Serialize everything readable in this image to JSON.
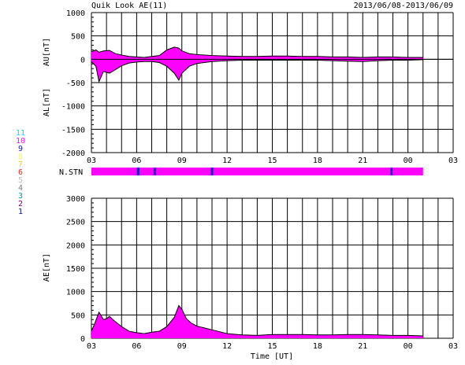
{
  "title": "Quik Look AE(11)",
  "date_range": "2013/06/08-2013/06/09",
  "time_label": "Time [UT]",
  "nstn_label": "N.STN",
  "colors": {
    "fill": "#ff00ff",
    "grid": "#000000",
    "stn_marker": "#1020c0"
  },
  "station_legend": [
    {
      "label": "11",
      "color": "#00e0e0"
    },
    {
      "label": "10",
      "color": "#ff00ff"
    },
    {
      "label": "9",
      "color": "#1020c0"
    },
    {
      "label": "8",
      "color": "#f0f080"
    },
    {
      "label": "7",
      "color": "#f0d020"
    },
    {
      "label": "6",
      "color": "#ff2020"
    },
    {
      "label": "5",
      "color": "#c0c0c0"
    },
    {
      "label": "4",
      "color": "#808080"
    },
    {
      "label": "3",
      "color": "#00a0a0"
    },
    {
      "label": "2",
      "color": "#800080"
    },
    {
      "label": "1",
      "color": "#1010a0"
    }
  ],
  "chart_data": [
    {
      "type": "area",
      "name": "AU/AL",
      "ylabel_top": "AU[nT]",
      "ylabel_bottom": "AL[nT]",
      "xlim": [
        3,
        27
      ],
      "ylim": [
        -2000,
        1000
      ],
      "yticks": [
        1000,
        500,
        0,
        -500,
        -1000,
        -1500,
        -2000
      ],
      "xtick_labels": [
        "03",
        "06",
        "09",
        "12",
        "15",
        "18",
        "21",
        "00",
        "03"
      ],
      "grid": true,
      "x": [
        3.0,
        3.3,
        3.5,
        3.8,
        4.2,
        4.6,
        5.0,
        5.5,
        6.0,
        6.5,
        7.0,
        7.5,
        8.0,
        8.5,
        8.8,
        9.0,
        9.5,
        10.0,
        10.5,
        11.0,
        12.0,
        13.0,
        14.0,
        15.0,
        16.0,
        17.0,
        18.0,
        19.0,
        20.0,
        21.0,
        22.0,
        23.0,
        24.0,
        25.0
      ],
      "au": [
        160,
        200,
        150,
        180,
        190,
        120,
        90,
        60,
        50,
        40,
        60,
        80,
        200,
        260,
        240,
        180,
        120,
        100,
        90,
        80,
        70,
        60,
        60,
        70,
        70,
        60,
        60,
        50,
        50,
        40,
        50,
        50,
        40,
        40
      ],
      "al": [
        -50,
        -150,
        -480,
        -260,
        -300,
        -220,
        -140,
        -80,
        -60,
        -50,
        -50,
        -70,
        -150,
        -300,
        -450,
        -300,
        -150,
        -90,
        -70,
        -50,
        -30,
        -20,
        -20,
        -20,
        -20,
        -20,
        -20,
        -30,
        -40,
        -50,
        -30,
        -20,
        -20,
        -10
      ]
    },
    {
      "type": "area",
      "name": "AE",
      "ylabel": "AE[nT]",
      "xlabel": "Time [UT]",
      "xlim": [
        3,
        27
      ],
      "ylim": [
        0,
        3000
      ],
      "yticks": [
        3000,
        2500,
        2000,
        1500,
        1000,
        500,
        0
      ],
      "xtick_labels": [
        "03",
        "06",
        "09",
        "12",
        "15",
        "18",
        "21",
        "00",
        "03"
      ],
      "grid": true,
      "x": [
        3.0,
        3.2,
        3.5,
        3.8,
        4.0,
        4.2,
        4.5,
        5.0,
        5.5,
        6.0,
        6.5,
        7.0,
        7.5,
        8.0,
        8.5,
        8.8,
        9.0,
        9.3,
        9.6,
        10.0,
        10.5,
        11.0,
        11.5,
        12.0,
        13.0,
        14.0,
        15.0,
        16.0,
        17.0,
        18.0,
        19.0,
        20.0,
        21.0,
        22.0,
        23.0,
        24.0,
        25.0
      ],
      "values": [
        150,
        300,
        560,
        400,
        420,
        470,
        380,
        250,
        150,
        120,
        100,
        130,
        150,
        250,
        450,
        700,
        620,
        420,
        330,
        260,
        220,
        180,
        140,
        100,
        70,
        60,
        80,
        80,
        80,
        70,
        70,
        80,
        80,
        70,
        60,
        60,
        50
      ]
    }
  ],
  "nstn_bar": {
    "x_start": 3,
    "x_end": 25,
    "markers": [
      6.1,
      7.2,
      11.0,
      22.9
    ]
  }
}
